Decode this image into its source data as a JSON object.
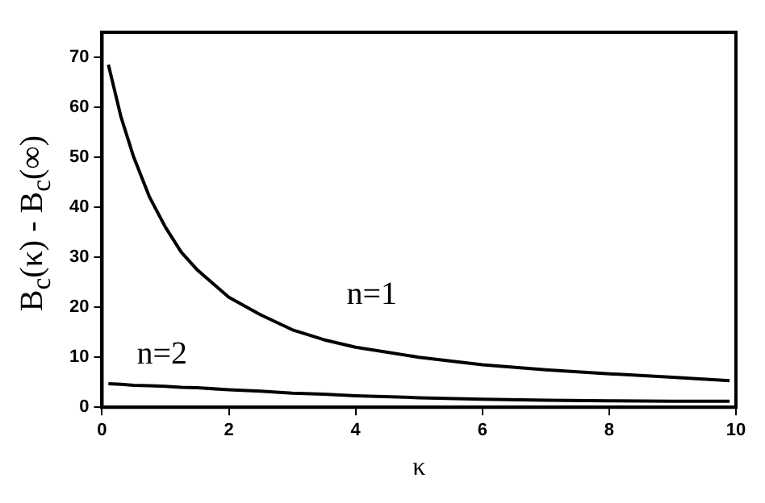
{
  "chart_data": {
    "type": "line",
    "xlabel": "κ",
    "ylabel": "B$_{c}$(κ) - B$_{c}$(∞)",
    "x": [
      0.1,
      0.3,
      0.5,
      0.75,
      1,
      1.25,
      1.5,
      2,
      2.5,
      3,
      3.5,
      4,
      5,
      6,
      7,
      8,
      9,
      9.9
    ],
    "series": [
      {
        "name": "n=1",
        "color": "#000000",
        "values": [
          68.5,
          58,
          50,
          42,
          36,
          31,
          27.5,
          22,
          18.5,
          15.5,
          13.5,
          12,
          10,
          8.5,
          7.5,
          6.7,
          6,
          5.3
        ]
      },
      {
        "name": "n=2",
        "color": "#000000",
        "values": [
          4.7,
          4.6,
          4.4,
          4.3,
          4.2,
          4.0,
          3.9,
          3.5,
          3.2,
          2.8,
          2.6,
          2.3,
          1.9,
          1.6,
          1.4,
          1.3,
          1.2,
          1.2
        ]
      }
    ],
    "xlim": [
      0,
      10
    ],
    "xticks": [
      0,
      2,
      4,
      6,
      8,
      10
    ],
    "ylim": [
      0,
      75
    ],
    "yticks": [
      0,
      10,
      20,
      30,
      40,
      50,
      60,
      70
    ],
    "grid": false,
    "legend": false,
    "marker": "none",
    "line_style": "solid"
  }
}
